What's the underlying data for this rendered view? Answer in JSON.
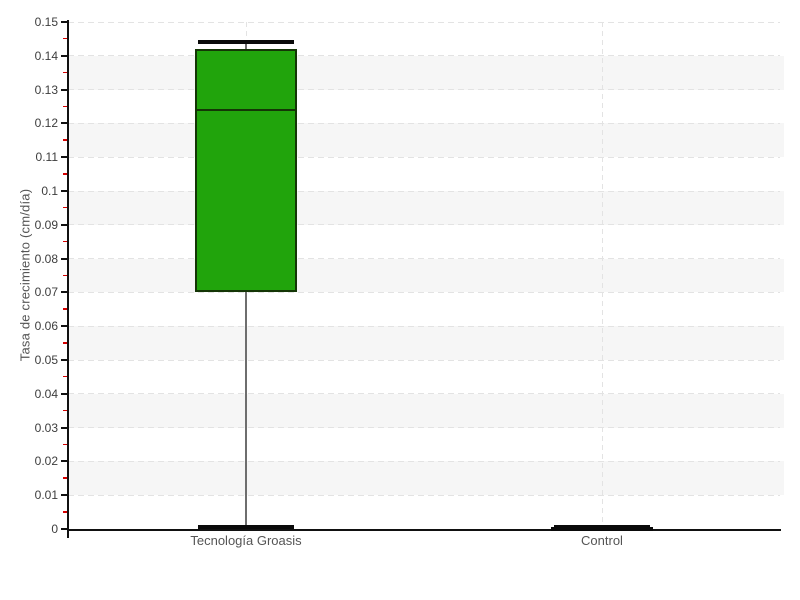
{
  "chart_data": {
    "type": "boxplot",
    "title": "",
    "xlabel": "",
    "ylabel": "Tasa de crecimiento (cm/día)",
    "ylim": [
      0,
      0.15
    ],
    "y_major_step": 0.01,
    "y_minor_step": 0.005,
    "y_tick_labels": [
      "0",
      "0.01",
      "0.02",
      "0.03",
      "0.04",
      "0.05",
      "0.06",
      "0.07",
      "0.08",
      "0.09",
      "0.1",
      "0.11",
      "0.12",
      "0.13",
      "0.14",
      "0.15"
    ],
    "legend_position": "none",
    "grid": "dashed horizontal lines at each 0.01, dashed vertical line at each category center, alternating light shaded bands",
    "categories": [
      "Tecnología Groasis",
      "Control"
    ],
    "series": [
      {
        "name": "Tecnología Groasis",
        "min": 0.0005,
        "q1": 0.07,
        "median": 0.124,
        "q3": 0.142,
        "max": 0.144,
        "fill": "#21a40c",
        "stroke": "#143606"
      },
      {
        "name": "Control",
        "min": 0,
        "q1": 0,
        "median": 0.0003,
        "q3": 0.0005,
        "max": 0.0005,
        "fill": "#0a0a0a",
        "stroke": "#0a0a0a"
      }
    ],
    "colors": {
      "background": "#ffffff",
      "band": "#f6f6f6",
      "grid": "#e3e3e3",
      "axis": "#111111",
      "major_tick": "#111111",
      "minor_tick": "#d40000",
      "tick_label": "#3d3d3d",
      "category_label": "#555555",
      "axis_title": "#555555",
      "whisker": "#6e6e6e",
      "cap": "#0a0a0a"
    }
  }
}
